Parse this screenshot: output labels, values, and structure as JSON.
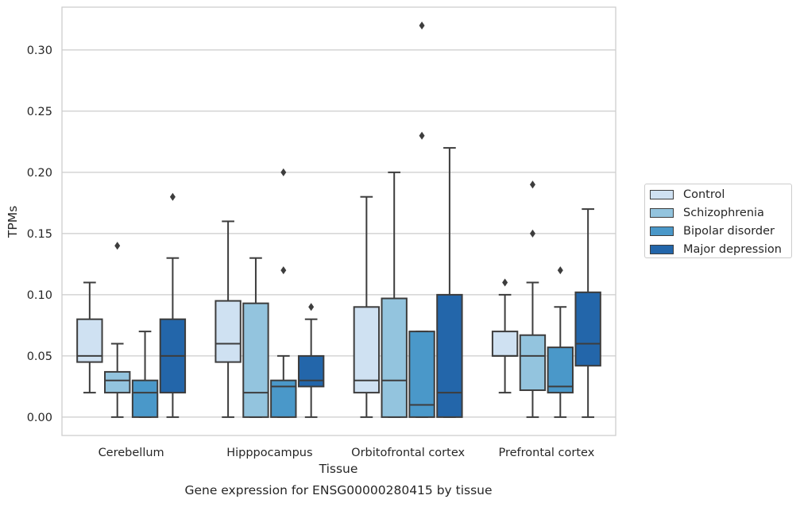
{
  "chart_data": {
    "type": "boxplot",
    "title": "",
    "caption": "Gene expression for ENSG00000280415 by tissue",
    "xlabel": "Tissue",
    "ylabel": "TPMs",
    "ylim": [
      -0.015,
      0.335
    ],
    "yticks": [
      "0.00",
      "0.05",
      "0.10",
      "0.15",
      "0.20",
      "0.25",
      "0.30"
    ],
    "ytick_values": [
      0,
      0.05,
      0.1,
      0.15,
      0.2,
      0.25,
      0.3
    ],
    "grid": "horizontal",
    "legend_position": "right",
    "categories": [
      "Cerebellum",
      "Hipppocampus",
      "Orbitofrontal cortex",
      "Prefrontal cortex"
    ],
    "series": [
      {
        "name": "Control",
        "color": "#cfe1f2",
        "boxes": [
          {
            "whislo": 0.02,
            "q1": 0.045,
            "med": 0.05,
            "q3": 0.08,
            "whishi": 0.11,
            "fliers": []
          },
          {
            "whislo": 0.0,
            "q1": 0.045,
            "med": 0.06,
            "q3": 0.095,
            "whishi": 0.16,
            "fliers": []
          },
          {
            "whislo": 0.0,
            "q1": 0.02,
            "med": 0.03,
            "q3": 0.09,
            "whishi": 0.18,
            "fliers": []
          },
          {
            "whislo": 0.02,
            "q1": 0.05,
            "med": 0.05,
            "q3": 0.07,
            "whishi": 0.1,
            "fliers": [
              0.11
            ]
          }
        ]
      },
      {
        "name": "Schizophrenia",
        "color": "#93c4de",
        "boxes": [
          {
            "whislo": 0.0,
            "q1": 0.02,
            "med": 0.03,
            "q3": 0.037,
            "whishi": 0.06,
            "fliers": [
              0.14
            ]
          },
          {
            "whislo": 0.0,
            "q1": 0.0,
            "med": 0.02,
            "q3": 0.093,
            "whishi": 0.13,
            "fliers": []
          },
          {
            "whislo": 0.0,
            "q1": 0.0,
            "med": 0.03,
            "q3": 0.097,
            "whishi": 0.2,
            "fliers": []
          },
          {
            "whislo": 0.0,
            "q1": 0.022,
            "med": 0.05,
            "q3": 0.067,
            "whishi": 0.11,
            "fliers": [
              0.15,
              0.19
            ]
          }
        ]
      },
      {
        "name": "Bipolar disorder",
        "color": "#4a98c9",
        "boxes": [
          {
            "whislo": 0.0,
            "q1": 0.0,
            "med": 0.02,
            "q3": 0.03,
            "whishi": 0.07,
            "fliers": []
          },
          {
            "whislo": 0.0,
            "q1": 0.0,
            "med": 0.025,
            "q3": 0.03,
            "whishi": 0.05,
            "fliers": [
              0.12,
              0.2
            ]
          },
          {
            "whislo": 0.0,
            "q1": 0.0,
            "med": 0.01,
            "q3": 0.07,
            "whishi": 0.07,
            "fliers": [
              0.23,
              0.32
            ]
          },
          {
            "whislo": 0.0,
            "q1": 0.02,
            "med": 0.025,
            "q3": 0.057,
            "whishi": 0.09,
            "fliers": [
              0.12
            ]
          }
        ]
      },
      {
        "name": "Major depression",
        "color": "#2366aa",
        "boxes": [
          {
            "whislo": 0.0,
            "q1": 0.02,
            "med": 0.05,
            "q3": 0.08,
            "whishi": 0.13,
            "fliers": [
              0.18
            ]
          },
          {
            "whislo": 0.0,
            "q1": 0.025,
            "med": 0.03,
            "q3": 0.05,
            "whishi": 0.08,
            "fliers": [
              0.09
            ]
          },
          {
            "whislo": 0.0,
            "q1": 0.0,
            "med": 0.02,
            "q3": 0.1,
            "whishi": 0.22,
            "fliers": []
          },
          {
            "whislo": 0.0,
            "q1": 0.042,
            "med": 0.06,
            "q3": 0.102,
            "whishi": 0.17,
            "fliers": []
          }
        ]
      }
    ]
  }
}
